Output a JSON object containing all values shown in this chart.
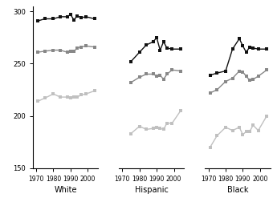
{
  "years_white": [
    1971,
    1975,
    1980,
    1984,
    1988,
    1990,
    1992,
    1994,
    1996,
    1999,
    2004
  ],
  "white_age17": [
    291,
    293,
    293,
    295,
    295,
    297,
    292,
    296,
    294,
    295,
    293
  ],
  "white_age13": [
    261,
    262,
    263,
    263,
    261,
    262,
    262,
    265,
    266,
    267,
    266
  ],
  "white_age9": [
    214,
    217,
    221,
    218,
    218,
    217,
    218,
    218,
    220,
    221,
    224
  ],
  "years_hisp": [
    1975,
    1980,
    1984,
    1988,
    1990,
    1992,
    1994,
    1996,
    1999,
    2004
  ],
  "hisp_age17": [
    252,
    261,
    268,
    271,
    275,
    263,
    271,
    265,
    264,
    264
  ],
  "hisp_age13": [
    232,
    237,
    240,
    240,
    238,
    239,
    235,
    240,
    244,
    243
  ],
  "hisp_age9": [
    183,
    190,
    187,
    188,
    189,
    188,
    187,
    193,
    193,
    205
  ],
  "years_black": [
    1971,
    1975,
    1980,
    1984,
    1988,
    1990,
    1992,
    1994,
    1996,
    1999,
    2004
  ],
  "black_age17": [
    239,
    241,
    243,
    264,
    274,
    267,
    261,
    266,
    265,
    264,
    264
  ],
  "black_age13": [
    222,
    225,
    233,
    236,
    243,
    242,
    238,
    234,
    235,
    238,
    244
  ],
  "black_age9": [
    170,
    181,
    189,
    186,
    189,
    182,
    185,
    185,
    191,
    186,
    200
  ],
  "ylim": [
    150,
    305
  ],
  "yticks": [
    150,
    200,
    250,
    300
  ],
  "xticks": [
    1970,
    1980,
    1990,
    2000
  ],
  "xlim": [
    1968,
    2006
  ],
  "color_dark": "#111111",
  "color_medium": "#888888",
  "color_light": "#c0c0c0",
  "panel_labels": [
    "White",
    "Hispanic",
    "Black"
  ],
  "marker": "s",
  "markersize": 2.8,
  "linewidth": 1.0
}
